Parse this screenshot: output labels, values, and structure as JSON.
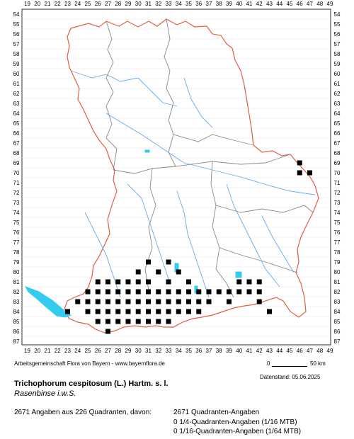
{
  "map": {
    "x_ticks": [
      "19",
      "20",
      "21",
      "22",
      "23",
      "24",
      "25",
      "26",
      "27",
      "28",
      "29",
      "30",
      "31",
      "32",
      "33",
      "34",
      "35",
      "36",
      "37",
      "38",
      "39",
      "40",
      "41",
      "42",
      "43",
      "44",
      "45",
      "46",
      "47",
      "48",
      "49"
    ],
    "y_ticks": [
      "54",
      "55",
      "56",
      "57",
      "58",
      "59",
      "60",
      "61",
      "62",
      "63",
      "64",
      "65",
      "66",
      "67",
      "68",
      "69",
      "70",
      "71",
      "72",
      "73",
      "74",
      "75",
      "76",
      "77",
      "78",
      "79",
      "80",
      "81",
      "82",
      "83",
      "84",
      "85",
      "86",
      "87"
    ],
    "colors": {
      "border": "#e06040",
      "districts": "#888888",
      "rivers": "#66aaee",
      "lakes": "#33ccee",
      "grid": "#d0d0d0",
      "occurrence": "#000000"
    },
    "occurrences_north": [
      {
        "col": 46,
        "row": 69
      },
      {
        "col": 47,
        "row": 70
      },
      {
        "col": 46,
        "row": 70
      }
    ],
    "occurrences_south": [
      {
        "col": 31,
        "row": 79
      },
      {
        "col": 33,
        "row": 79
      },
      {
        "col": 30,
        "row": 80
      },
      {
        "col": 32,
        "row": 80
      },
      {
        "col": 34,
        "row": 80
      },
      {
        "col": 26,
        "row": 81
      },
      {
        "col": 27,
        "row": 81
      },
      {
        "col": 28,
        "row": 81
      },
      {
        "col": 29,
        "row": 81
      },
      {
        "col": 30,
        "row": 81
      },
      {
        "col": 31,
        "row": 81
      },
      {
        "col": 33,
        "row": 81
      },
      {
        "col": 35,
        "row": 81
      },
      {
        "col": 40,
        "row": 81
      },
      {
        "col": 41,
        "row": 81
      },
      {
        "col": 42,
        "row": 81
      },
      {
        "col": 25,
        "row": 82
      },
      {
        "col": 26,
        "row": 82
      },
      {
        "col": 27,
        "row": 82
      },
      {
        "col": 28,
        "row": 82
      },
      {
        "col": 29,
        "row": 82
      },
      {
        "col": 30,
        "row": 82
      },
      {
        "col": 31,
        "row": 82
      },
      {
        "col": 32,
        "row": 82
      },
      {
        "col": 33,
        "row": 82
      },
      {
        "col": 34,
        "row": 82
      },
      {
        "col": 35,
        "row": 82
      },
      {
        "col": 36,
        "row": 82
      },
      {
        "col": 37,
        "row": 82
      },
      {
        "col": 38,
        "row": 82
      },
      {
        "col": 39,
        "row": 82
      },
      {
        "col": 40,
        "row": 82
      },
      {
        "col": 41,
        "row": 82
      },
      {
        "col": 42,
        "row": 82
      },
      {
        "col": 24,
        "row": 83
      },
      {
        "col": 25,
        "row": 83
      },
      {
        "col": 26,
        "row": 83
      },
      {
        "col": 27,
        "row": 83
      },
      {
        "col": 28,
        "row": 83
      },
      {
        "col": 29,
        "row": 83
      },
      {
        "col": 30,
        "row": 83
      },
      {
        "col": 31,
        "row": 83
      },
      {
        "col": 32,
        "row": 83
      },
      {
        "col": 33,
        "row": 83
      },
      {
        "col": 34,
        "row": 83
      },
      {
        "col": 35,
        "row": 83
      },
      {
        "col": 36,
        "row": 83
      },
      {
        "col": 37,
        "row": 83
      },
      {
        "col": 39,
        "row": 83
      },
      {
        "col": 42,
        "row": 83
      },
      {
        "col": 23,
        "row": 84
      },
      {
        "col": 25,
        "row": 84
      },
      {
        "col": 26,
        "row": 84
      },
      {
        "col": 27,
        "row": 84
      },
      {
        "col": 28,
        "row": 84
      },
      {
        "col": 29,
        "row": 84
      },
      {
        "col": 30,
        "row": 84
      },
      {
        "col": 31,
        "row": 84
      },
      {
        "col": 32,
        "row": 84
      },
      {
        "col": 33,
        "row": 84
      },
      {
        "col": 34,
        "row": 84
      },
      {
        "col": 35,
        "row": 84
      },
      {
        "col": 36,
        "row": 84
      },
      {
        "col": 43,
        "row": 84
      },
      {
        "col": 26,
        "row": 85
      },
      {
        "col": 27,
        "row": 85
      },
      {
        "col": 28,
        "row": 85
      },
      {
        "col": 29,
        "row": 85
      },
      {
        "col": 30,
        "row": 85
      },
      {
        "col": 31,
        "row": 85
      },
      {
        "col": 32,
        "row": 85
      },
      {
        "col": 33,
        "row": 85
      },
      {
        "col": 27,
        "row": 86
      }
    ]
  },
  "credit": "Arbeitsgemeinschaft Flora von Bayern - www.bayernflora.de",
  "scale": {
    "start": "0",
    "end": "50 km"
  },
  "date_stamp": "Datenstand: 05.06.2025",
  "title": "Trichophorum cespitosum (L.) Hartm. s. l.",
  "subtitle": "Rasenbinse i.w.S.",
  "stats": {
    "summary": "2671 Angaben aus 226 Quadranten, davon:",
    "line1": "2671 Quadranten-Angaben",
    "line2": "0 1/4-Quadranten-Angaben (1/16 MTB)",
    "line3": "0 1/16-Quadranten-Angaben (1/64 MTB)"
  }
}
